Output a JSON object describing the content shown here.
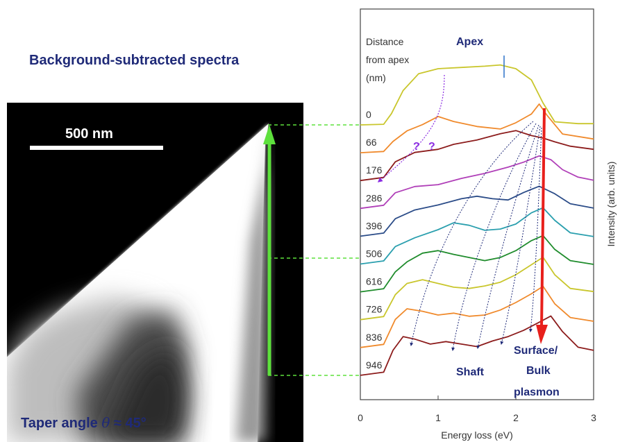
{
  "figure": {
    "heading": "Background-subtracted spectra",
    "taper": {
      "prefix": "Taper angle ",
      "theta": "θ",
      "suffix": " ≈ 45°"
    },
    "scale_bar_label": "500 nm",
    "colors": {
      "heading": "#1f2a78",
      "green_arrow": "#5de03c",
      "red_arrow": "#e8201c",
      "annotation": "#1f2a78",
      "question": "#8a2be2"
    }
  },
  "chart_data": {
    "type": "line",
    "xlabel": "Energy loss  (eV)",
    "ylabel": "Intensity  (arb. units)",
    "xlim": [
      0,
      3
    ],
    "x_ticks": [
      "0",
      "1",
      "2",
      "3"
    ],
    "header": [
      "Distance",
      "from apex",
      "(nm)"
    ],
    "annotations": {
      "apex": "Apex",
      "questions": [
        "?",
        "?"
      ],
      "shaft": "Shaft",
      "surface": [
        "Surface/",
        "Bulk",
        "plasmon"
      ]
    },
    "series": [
      {
        "name": "0",
        "color": "#c9c62c",
        "x": [
          0,
          0.3,
          0.4,
          0.55,
          0.75,
          1.0,
          1.3,
          1.6,
          1.8,
          2.0,
          2.2,
          2.35,
          2.5,
          2.8,
          3.0
        ],
        "values": [
          0,
          0.01,
          0.18,
          0.55,
          0.82,
          0.9,
          0.92,
          0.94,
          0.96,
          0.9,
          0.72,
          0.35,
          0.05,
          0.02,
          0.02
        ]
      },
      {
        "name": "66",
        "color": "#f08a2c",
        "x": [
          0,
          0.3,
          0.42,
          0.6,
          0.8,
          1.0,
          1.2,
          1.5,
          1.8,
          2.0,
          2.2,
          2.3,
          2.4,
          2.6,
          3.0
        ],
        "values": [
          0,
          0.02,
          0.18,
          0.35,
          0.45,
          0.58,
          0.5,
          0.42,
          0.38,
          0.48,
          0.62,
          0.78,
          0.6,
          0.3,
          0.22
        ]
      },
      {
        "name": "176",
        "color": "#8c1c1c",
        "x": [
          0,
          0.3,
          0.45,
          0.7,
          1.0,
          1.2,
          1.5,
          1.8,
          2.0,
          2.2,
          2.35,
          2.5,
          2.7,
          3.0
        ],
        "values": [
          0,
          0.05,
          0.3,
          0.45,
          0.5,
          0.58,
          0.65,
          0.75,
          0.8,
          0.72,
          0.68,
          0.62,
          0.55,
          0.5
        ]
      },
      {
        "name": "286",
        "color": "#b03fb8",
        "x": [
          0,
          0.3,
          0.45,
          0.7,
          1.0,
          1.3,
          1.6,
          1.9,
          2.1,
          2.3,
          2.45,
          2.6,
          2.8,
          3.0
        ],
        "values": [
          0,
          0.05,
          0.25,
          0.35,
          0.38,
          0.48,
          0.56,
          0.66,
          0.74,
          0.84,
          0.78,
          0.62,
          0.5,
          0.45
        ]
      },
      {
        "name": "396",
        "color": "#2b4c88",
        "x": [
          0,
          0.3,
          0.45,
          0.7,
          1.0,
          1.3,
          1.5,
          1.7,
          1.9,
          2.1,
          2.3,
          2.5,
          2.7,
          3.0
        ],
        "values": [
          0,
          0.05,
          0.28,
          0.42,
          0.5,
          0.6,
          0.64,
          0.6,
          0.58,
          0.7,
          0.8,
          0.68,
          0.52,
          0.45
        ]
      },
      {
        "name": "506",
        "color": "#2a9fae",
        "x": [
          0,
          0.3,
          0.45,
          0.7,
          1.0,
          1.2,
          1.4,
          1.6,
          1.8,
          2.0,
          2.2,
          2.35,
          2.5,
          2.7,
          3.0
        ],
        "values": [
          0,
          0.05,
          0.28,
          0.42,
          0.55,
          0.66,
          0.62,
          0.54,
          0.56,
          0.64,
          0.82,
          0.9,
          0.7,
          0.5,
          0.44
        ]
      },
      {
        "name": "616",
        "color": "#1f8c2c",
        "x": [
          0,
          0.3,
          0.45,
          0.6,
          0.8,
          1.0,
          1.2,
          1.4,
          1.6,
          1.8,
          2.0,
          2.2,
          2.35,
          2.5,
          2.7,
          3.0
        ],
        "values": [
          0,
          0.05,
          0.32,
          0.48,
          0.62,
          0.66,
          0.6,
          0.55,
          0.5,
          0.55,
          0.66,
          0.82,
          0.9,
          0.68,
          0.5,
          0.44
        ]
      },
      {
        "name": "726",
        "color": "#c9c62c",
        "x": [
          0,
          0.3,
          0.45,
          0.6,
          0.8,
          1.0,
          1.2,
          1.4,
          1.6,
          1.8,
          2.0,
          2.2,
          2.35,
          2.5,
          2.7,
          3.0
        ],
        "values": [
          0,
          0.05,
          0.4,
          0.58,
          0.64,
          0.58,
          0.52,
          0.5,
          0.54,
          0.6,
          0.72,
          0.88,
          1.0,
          0.72,
          0.5,
          0.45
        ]
      },
      {
        "name": "836",
        "color": "#f08a2c",
        "x": [
          0,
          0.3,
          0.45,
          0.6,
          0.8,
          1.0,
          1.2,
          1.4,
          1.6,
          1.8,
          2.0,
          2.2,
          2.35,
          2.5,
          2.7,
          3.0
        ],
        "values": [
          0,
          0.05,
          0.45,
          0.62,
          0.58,
          0.52,
          0.55,
          0.5,
          0.52,
          0.6,
          0.72,
          0.86,
          0.98,
          0.7,
          0.48,
          0.42
        ]
      },
      {
        "name": "946",
        "color": "#8c1c1c",
        "x": [
          0,
          0.3,
          0.42,
          0.55,
          0.7,
          0.9,
          1.1,
          1.3,
          1.5,
          1.7,
          1.9,
          2.1,
          2.3,
          2.45,
          2.6,
          2.8,
          3.0
        ],
        "values": [
          0,
          0.05,
          0.4,
          0.62,
          0.58,
          0.5,
          0.54,
          0.5,
          0.46,
          0.55,
          0.62,
          0.72,
          0.85,
          0.95,
          0.7,
          0.45,
          0.4
        ]
      }
    ]
  }
}
